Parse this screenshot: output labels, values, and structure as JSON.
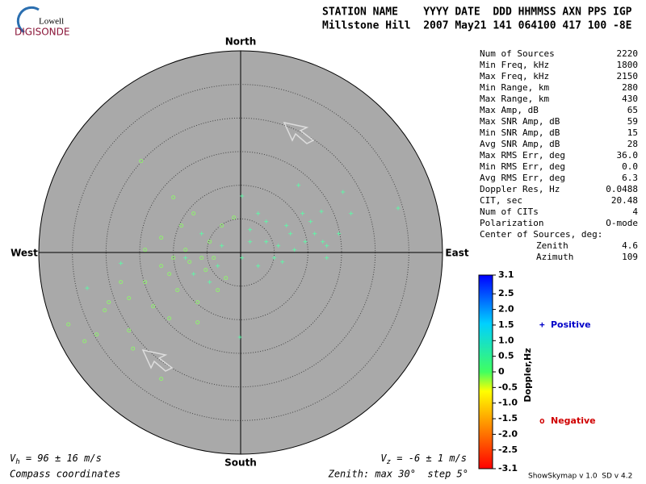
{
  "header": {
    "logo_top": "Lowell",
    "logo_bottom": "DIGISONDE",
    "line1": "STATION NAME    YYYY DATE  DDD HHMMSS AXN PPS IGP",
    "line2": "Millstone Hill  2007 May21 141 064100 417 100 -8E"
  },
  "stats": [
    {
      "label": "Num of Sources",
      "value": "2220"
    },
    {
      "label": "Min Freq, kHz",
      "value": "1800"
    },
    {
      "label": "Max Freq, kHz",
      "value": "2150"
    },
    {
      "label": "Min Range, km",
      "value": "280"
    },
    {
      "label": "Max Range, km",
      "value": "430"
    },
    {
      "label": "Max Amp, dB",
      "value": "65"
    },
    {
      "label": "Max SNR Amp, dB",
      "value": "59"
    },
    {
      "label": "Min SNR Amp, dB",
      "value": "15"
    },
    {
      "label": "Avg SNR Amp, dB",
      "value": "28"
    },
    {
      "label": "Max RMS Err, deg",
      "value": "36.0"
    },
    {
      "label": "Min RMS Err, deg",
      "value": "0.0"
    },
    {
      "label": "Avg RMS Err, deg",
      "value": "6.3"
    },
    {
      "label": "Doppler Res, Hz",
      "value": "0.0488"
    },
    {
      "label": "CIT, sec",
      "value": "20.48"
    },
    {
      "label": "Num of CITs",
      "value": "4"
    },
    {
      "label": "Polarization",
      "value": "O-mode"
    }
  ],
  "center": {
    "title": "Center of Sources, deg:",
    "rows": [
      {
        "label": "Zenith",
        "value": "4.6"
      },
      {
        "label": "Azimuth",
        "value": "109"
      }
    ]
  },
  "chart_data": {
    "type": "scatter",
    "directions": {
      "north": "North",
      "south": "South",
      "east": "East",
      "west": "West"
    },
    "rings": [
      5,
      10,
      15,
      20,
      25,
      30
    ],
    "series": [
      {
        "name": "Positive",
        "marker": "+",
        "legend_color": "#0000c8",
        "point_color": "#66f0a8",
        "x": [
          0.2,
          8.6,
          15.2,
          23.4,
          12.0,
          9.6,
          12.2,
          7.4,
          3.8,
          5.0,
          1.4,
          12.8,
          -0.1,
          -17.8,
          -22.8,
          -5.8,
          2.6,
          6.8,
          10.4,
          5.6,
          8.0,
          11.0,
          -3.4,
          -8.2,
          1.4,
          3.8,
          0.2,
          -2.8,
          14.6,
          9.2,
          6.2,
          -4.6,
          -7.0,
          2.6,
          16.4,
          12.8
        ],
        "y": [
          8.4,
          10.0,
          9.0,
          6.6,
          6.1,
          1.6,
          1.6,
          2.8,
          4.6,
          -0.8,
          1.6,
          -0.8,
          -12.6,
          -1.6,
          -5.3,
          2.8,
          5.8,
          4.0,
          4.6,
          1.0,
          0.4,
          2.8,
          -2.0,
          -0.8,
          3.4,
          1.6,
          -0.8,
          1.0,
          2.8,
          5.8,
          -1.4,
          -4.4,
          -3.2,
          -2.0,
          5.8,
          1.0
        ]
      },
      {
        "name": "Negative",
        "marker": "o",
        "legend_color": "#d00000",
        "point_color": "#90f070",
        "x": [
          -10.0,
          -7.0,
          -11.8,
          -14.2,
          -8.2,
          -5.8,
          -10.6,
          -14.2,
          -16.6,
          -20.2,
          -25.6,
          -23.2,
          -21.4,
          -16.6,
          -16.0,
          -11.8,
          -14.8,
          -8.8,
          -4.6,
          -11.8,
          -9.4,
          -6.4,
          -3.4,
          -2.2,
          -13.0,
          -17.8,
          -6.4,
          -10.6,
          -19.6,
          -5.2,
          -7.6,
          -10.0,
          -2.8,
          -1.0,
          -4.0
        ],
        "y": [
          8.2,
          5.8,
          2.2,
          0.4,
          0.4,
          -0.8,
          -3.2,
          -4.4,
          -6.8,
          -8.6,
          -10.7,
          -13.2,
          -12.2,
          -11.6,
          -14.3,
          -18.8,
          13.6,
          4.0,
          1.6,
          -2.0,
          -5.6,
          -7.4,
          -5.6,
          -3.8,
          -8.0,
          -4.4,
          -10.4,
          -9.8,
          -7.4,
          -2.6,
          -1.4,
          -0.8,
          4.0,
          5.2,
          -0.8
        ]
      }
    ],
    "colorbar": {
      "label": "Doppler,Hz",
      "lim": [
        -3.1,
        3.1
      ],
      "ticks": [
        3.1,
        2.5,
        {
          "value": 2,
          "label": "2.0"
        },
        1.5,
        {
          "value": 1,
          "label": "1.0"
        },
        0.5,
        0,
        -0.5,
        {
          "value": -1,
          "label": "-1.0"
        },
        -1.5,
        {
          "value": -2,
          "label": "-2.0"
        },
        -2.5,
        -3.1
      ]
    }
  },
  "footer": {
    "vh_symbol": "V",
    "vh_sub": "h",
    "vh_text": " = 96 ± 16 m/s",
    "vz_symbol": "V",
    "vz_sub": "z",
    "vz_text": " = -6 ± 1 m/s",
    "coords": "Compass coordinates",
    "zenith": "Zenith: max 30°  step 5°",
    "version": "ShowSkymap v 1.0  SD v 4.2"
  }
}
